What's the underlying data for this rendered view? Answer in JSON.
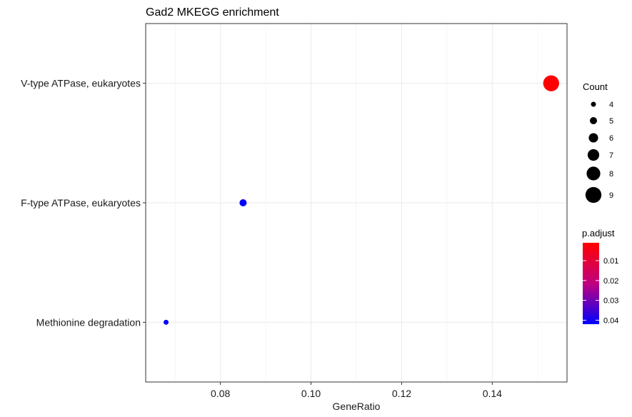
{
  "chart_data": {
    "type": "scatter",
    "title": "Gad2 MKEGG enrichment",
    "xlabel": "GeneRatio",
    "ylabel": "",
    "xlim": [
      0.0635,
      0.1565
    ],
    "x_ticks": [
      0.08,
      0.1,
      0.12,
      0.14
    ],
    "x_tick_labels": [
      "0.08",
      "0.10",
      "0.12",
      "0.14"
    ],
    "categories": [
      "V-type ATPase, eukaryotes",
      "F-type ATPase, eukaryotes",
      "Methionine degradation"
    ],
    "points": [
      {
        "category": "V-type ATPase, eukaryotes",
        "x": 0.153,
        "count": 9,
        "p_adjust": 0.002,
        "color": "#FF0000"
      },
      {
        "category": "F-type ATPase, eukaryotes",
        "x": 0.085,
        "count": 5,
        "p_adjust": 0.042,
        "color": "#0000FF"
      },
      {
        "category": "Methionine degradation",
        "x": 0.068,
        "count": 4,
        "p_adjust": 0.042,
        "color": "#0000FF"
      }
    ],
    "grid": true,
    "legend": {
      "placement": "right",
      "size_title": "Count",
      "size_values": [
        4,
        5,
        6,
        7,
        8,
        9
      ],
      "size_labels": [
        "4",
        "5",
        "6",
        "7",
        "8",
        "9"
      ],
      "color_title": "p.adjust",
      "color_low": "#FF0000",
      "color_high": "#0000FF",
      "color_range": [
        0.001,
        0.042
      ],
      "color_ticks": [
        0.01,
        0.02,
        0.03,
        0.04
      ],
      "color_tick_labels": [
        "0.01",
        "0.02",
        "0.03",
        "0.04"
      ]
    }
  }
}
